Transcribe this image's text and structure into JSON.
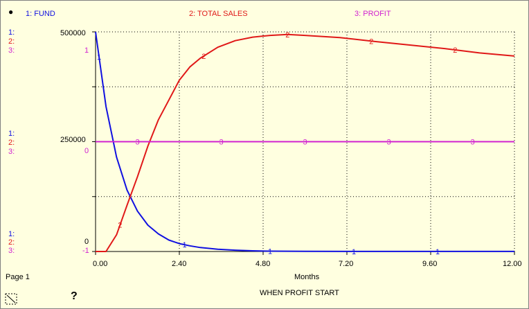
{
  "legend": [
    {
      "label": "1: FUND",
      "color": "#1010e0"
    },
    {
      "label": "2: TOTAL SALES",
      "color": "#e01818"
    },
    {
      "label": "3: PROFIT",
      "color": "#d020d0"
    }
  ],
  "axis_tags": {
    "top": {
      "s1": "1:",
      "s2": "2:",
      "s3": "3:",
      "s3_value": "1"
    },
    "mid": {
      "s1": "1:",
      "s2": "2:",
      "s3": "3:",
      "s3_value": "0"
    },
    "bot": {
      "s1": "1:",
      "s2": "2:",
      "s3": "3:",
      "s3_value": "-1"
    }
  },
  "page_label": "Page 1",
  "help_symbol": "?",
  "chart_data": {
    "type": "line",
    "title": "WHEN PROFIT START",
    "xlabel": "Months",
    "xlim": [
      0,
      12
    ],
    "x_ticks": [
      "0.00",
      "2.40",
      "4.80",
      "7.20",
      "9.60",
      "12.00"
    ],
    "ylim_left": [
      0,
      500000
    ],
    "y_tick_labels": [
      "500000",
      "250000",
      "0"
    ],
    "ylim_profit": [
      -1,
      1
    ],
    "grid": true,
    "series": [
      {
        "name": "FUND",
        "marker": "1",
        "color": "#1010e0",
        "x": [
          0,
          0.3,
          0.6,
          0.9,
          1.2,
          1.5,
          1.8,
          2.1,
          2.4,
          2.7,
          3.0,
          3.5,
          4.0,
          4.5,
          5.0,
          6.0,
          8.0,
          12.0
        ],
        "y": [
          500000,
          330000,
          215000,
          140000,
          92000,
          60000,
          40000,
          26000,
          18000,
          13000,
          9000,
          5000,
          3000,
          1500,
          800,
          400,
          200,
          100
        ]
      },
      {
        "name": "TOTAL SALES",
        "marker": "2",
        "color": "#e01818",
        "x": [
          0,
          0.3,
          0.6,
          0.9,
          1.2,
          1.5,
          1.8,
          2.1,
          2.4,
          2.7,
          3.0,
          3.5,
          4.0,
          4.5,
          5.0,
          5.5,
          6.0,
          7.0,
          8.0,
          9.0,
          10.0,
          11.0,
          12.0
        ],
        "y": [
          0,
          0,
          38000,
          105000,
          170000,
          240000,
          300000,
          345000,
          390000,
          420000,
          440000,
          465000,
          480000,
          488000,
          492000,
          494000,
          492000,
          487000,
          478000,
          470000,
          462000,
          452000,
          445000
        ]
      },
      {
        "name": "PROFIT",
        "marker": "3",
        "color": "#d020d0",
        "x": [
          0,
          12
        ],
        "y": [
          0,
          0
        ]
      }
    ]
  }
}
